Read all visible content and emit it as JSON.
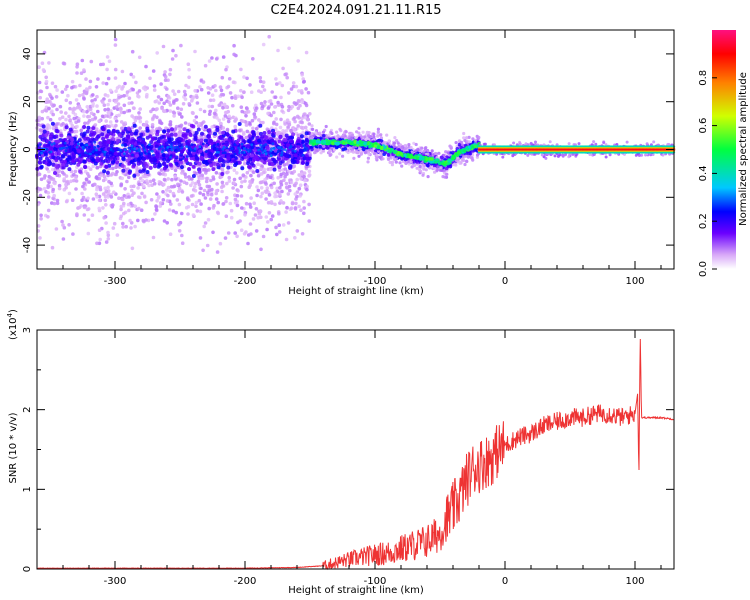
{
  "title": "C2E4.2024.091.21.11.R15",
  "chart_data": [
    {
      "type": "heatmap",
      "xlabel": "Height of straight line (km)",
      "ylabel": "Frequency (Hz)",
      "xlim": [
        -360,
        130
      ],
      "ylim": [
        -50,
        50
      ],
      "xticks": [
        -300,
        -200,
        -100,
        0,
        100
      ],
      "yticks": [
        -40,
        -20,
        0,
        20,
        40
      ],
      "grid": false,
      "colorbar": {
        "label": "Normalized spectral amplitude",
        "range": [
          0.0,
          1.0
        ],
        "ticks": [
          "0.0",
          "0.2",
          "0.4",
          "0.6",
          "0.8"
        ],
        "colors": [
          "#ffffff",
          "#d8a8f8",
          "#6a00ff",
          "#0000ff",
          "#00c8ff",
          "#00ff40",
          "#d0ff00",
          "#ff8000",
          "#ff0000",
          "#ff1080"
        ]
      },
      "regions": [
        {
          "x": [
            -360,
            -150
          ],
          "freq_center": 0,
          "core_halfwidth": 10,
          "spread": 50,
          "peak_amplitude": 0.5
        },
        {
          "x": [
            -150,
            -20
          ],
          "freq_center_track": [
            [
              -150,
              3
            ],
            [
              -120,
              3
            ],
            [
              -100,
              2
            ],
            [
              -80,
              -2
            ],
            [
              -60,
              -4
            ],
            [
              -45,
              -6
            ],
            [
              -35,
              -1
            ],
            [
              -20,
              2
            ]
          ],
          "peak_amplitude": 0.6
        },
        {
          "x": [
            -20,
            130
          ],
          "freq_center": 0,
          "core_halfwidth": 2,
          "peak_amplitude": 0.95
        }
      ]
    },
    {
      "type": "line",
      "xlabel": "Height of straight line (km)",
      "ylabel": "SNR (10 * v/v)",
      "yscale_label": "(x10",
      "yscale_exp": "4",
      "yscale_close": ")",
      "xlim": [
        -360,
        130
      ],
      "ylim": [
        0,
        3
      ],
      "xticks": [
        -300,
        -200,
        -100,
        0,
        100
      ],
      "yticks": [
        0,
        1,
        2,
        3
      ],
      "grid": false,
      "series": [
        {
          "color": "#ee3333",
          "x": [
            -360,
            -300,
            -200,
            -160,
            -140,
            -130,
            -120,
            -110,
            -100,
            -90,
            -80,
            -70,
            -60,
            -50,
            -45,
            -40,
            -35,
            -30,
            -25,
            -20,
            -15,
            -10,
            -5,
            0,
            5,
            10,
            20,
            30,
            40,
            50,
            60,
            70,
            80,
            90,
            100,
            102,
            103,
            104,
            105,
            110,
            120,
            130
          ],
          "values": [
            0.01,
            0.01,
            0.01,
            0.02,
            0.04,
            0.08,
            0.12,
            0.15,
            0.18,
            0.2,
            0.25,
            0.3,
            0.35,
            0.45,
            0.6,
            0.75,
            0.9,
            1.1,
            1.25,
            1.3,
            1.35,
            1.4,
            1.5,
            1.55,
            1.6,
            1.65,
            1.7,
            1.8,
            1.85,
            1.9,
            1.9,
            1.95,
            1.95,
            1.9,
            1.95,
            2.2,
            1.15,
            3.0,
            1.9,
            1.9,
            1.9,
            1.88
          ]
        }
      ]
    }
  ]
}
